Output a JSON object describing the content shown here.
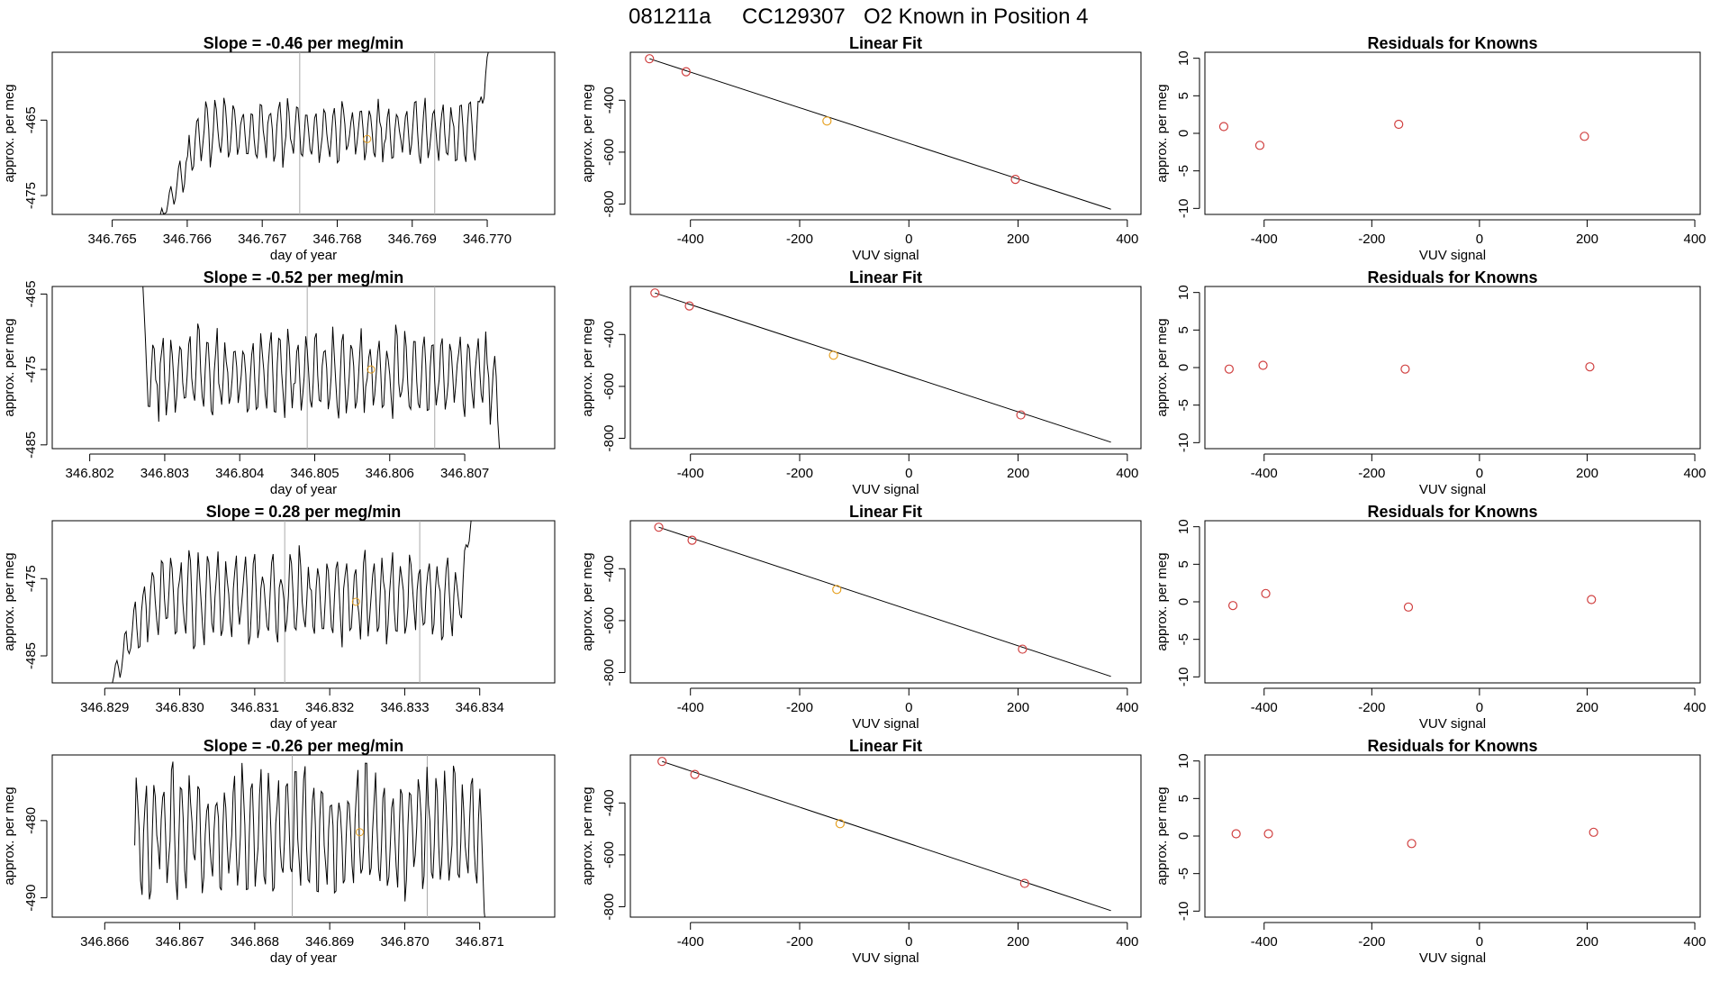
{
  "header": {
    "run_id": "081211a",
    "cylinder": "CC129307",
    "description": "O2 Known in Position  4"
  },
  "colors": {
    "line": "#000000",
    "residual_point": "#d04040",
    "highlight_point": "#e6a020",
    "vertical_marker": "#aaaaaa"
  },
  "chart_data": [
    {
      "type": "line",
      "row": 0,
      "panel": "time-series",
      "title": "Slope =  -0.46  per meg/min",
      "xlabel": "day of year",
      "ylabel": "approx. per meg",
      "xlim": [
        346.7642,
        346.7709
      ],
      "ylim": [
        -477.5,
        -456
      ],
      "xticks": [
        346.765,
        346.766,
        346.767,
        346.768,
        346.769,
        346.77
      ],
      "xtick_labels": [
        "346.765",
        "346.766",
        "346.767",
        "346.768",
        "346.769",
        "346.770"
      ],
      "yticks": [
        -465,
        -475
      ],
      "ytick_labels": [
        "-465",
        "-475"
      ],
      "series_start": 346.7655,
      "series_end": 346.7701,
      "baseline": -466.5,
      "amplitude": 4.0,
      "cycles": 38,
      "seed": 3,
      "ramp_end": 346.7662,
      "ramp_from": -481,
      "tail_start": 346.76985,
      "tail_to": -452,
      "markers": [
        346.7675,
        346.7693
      ],
      "highlight": {
        "x": 346.7684,
        "y": -467.5
      }
    },
    {
      "type": "scatter",
      "row": 0,
      "panel": "linear-fit",
      "title": "Linear Fit",
      "xlabel": "VUV signal",
      "ylabel": "approx. per meg",
      "xlim": [
        -510,
        425
      ],
      "ylim": [
        -840,
        -215
      ],
      "xticks": [
        -400,
        -200,
        0,
        200,
        400
      ],
      "xtick_labels": [
        "-400",
        "-200",
        "0",
        "200",
        "400"
      ],
      "yticks": [
        -400,
        -600,
        -800
      ],
      "ytick_labels": [
        "-400",
        "-600",
        "-800"
      ],
      "points": [
        {
          "x": -475,
          "y": -240,
          "highlight": false
        },
        {
          "x": -408,
          "y": -290,
          "highlight": false
        },
        {
          "x": -150,
          "y": -480,
          "highlight": true
        },
        {
          "x": 195,
          "y": -705,
          "highlight": false
        }
      ],
      "fit_line": {
        "x": [
          -475,
          370
        ],
        "y": [
          -240,
          -820
        ]
      }
    },
    {
      "type": "scatter",
      "row": 0,
      "panel": "residuals",
      "title": "Residuals for Knowns",
      "xlabel": "VUV signal",
      "ylabel": "approx. per meg",
      "xlim": [
        -510,
        410
      ],
      "ylim": [
        -10.8,
        10.8
      ],
      "xticks": [
        -400,
        -200,
        0,
        200,
        400
      ],
      "xtick_labels": [
        "-400",
        "-200",
        "0",
        "200",
        "400"
      ],
      "yticks": [
        10,
        5,
        0,
        -5,
        -10
      ],
      "ytick_labels": [
        "10",
        "5",
        "0",
        "-5",
        "-10"
      ],
      "points": [
        {
          "x": -475,
          "y": 0.9
        },
        {
          "x": -408,
          "y": -1.6
        },
        {
          "x": -150,
          "y": 1.2
        },
        {
          "x": 195,
          "y": -0.4
        }
      ]
    },
    {
      "type": "line",
      "row": 1,
      "panel": "time-series",
      "title": "Slope =  -0.52  per meg/min",
      "xlabel": "day of year",
      "ylabel": "approx. per meg",
      "xlim": [
        346.8015,
        346.8082
      ],
      "ylim": [
        -485.5,
        -464
      ],
      "xticks": [
        346.802,
        346.803,
        346.804,
        346.805,
        346.806,
        346.807
      ],
      "xtick_labels": [
        "346.802",
        "346.803",
        "346.804",
        "346.805",
        "346.806",
        "346.807"
      ],
      "yticks": [
        -465,
        -475,
        -485
      ],
      "ytick_labels": [
        "-465",
        "-475",
        "-485"
      ],
      "series_start": 346.8027,
      "series_end": 346.8075,
      "baseline": -475.5,
      "amplitude": 5.5,
      "cycles": 40,
      "seed": 7,
      "ramp_end": 346.80275,
      "ramp_from": -462,
      "tail_start": 346.8074,
      "tail_to": -489,
      "markers": [
        346.8049,
        346.8066
      ],
      "highlight": {
        "x": 346.80575,
        "y": -475
      }
    },
    {
      "type": "scatter",
      "row": 1,
      "panel": "linear-fit",
      "title": "Linear Fit",
      "xlabel": "VUV signal",
      "ylabel": "approx. per meg",
      "xlim": [
        -510,
        425
      ],
      "ylim": [
        -840,
        -215
      ],
      "xticks": [
        -400,
        -200,
        0,
        200,
        400
      ],
      "xtick_labels": [
        "-400",
        "-200",
        "0",
        "200",
        "400"
      ],
      "yticks": [
        -400,
        -600,
        -800
      ],
      "ytick_labels": [
        "-400",
        "-600",
        "-800"
      ],
      "points": [
        {
          "x": -465,
          "y": -240,
          "highlight": false
        },
        {
          "x": -402,
          "y": -290,
          "highlight": false
        },
        {
          "x": -138,
          "y": -480,
          "highlight": true
        },
        {
          "x": 205,
          "y": -710,
          "highlight": false
        }
      ],
      "fit_line": {
        "x": [
          -465,
          370
        ],
        "y": [
          -240,
          -815
        ]
      }
    },
    {
      "type": "scatter",
      "row": 1,
      "panel": "residuals",
      "title": "Residuals for Knowns",
      "xlabel": "VUV signal",
      "ylabel": "approx. per meg",
      "xlim": [
        -510,
        410
      ],
      "ylim": [
        -10.8,
        10.8
      ],
      "xticks": [
        -400,
        -200,
        0,
        200,
        400
      ],
      "xtick_labels": [
        "-400",
        "-200",
        "0",
        "200",
        "400"
      ],
      "yticks": [
        10,
        5,
        0,
        -5,
        -10
      ],
      "ytick_labels": [
        "10",
        "5",
        "0",
        "-5",
        "-10"
      ],
      "points": [
        {
          "x": -465,
          "y": -0.2
        },
        {
          "x": -402,
          "y": 0.3
        },
        {
          "x": -138,
          "y": -0.2
        },
        {
          "x": 205,
          "y": 0.1
        }
      ]
    },
    {
      "type": "line",
      "row": 2,
      "panel": "time-series",
      "title": "Slope =  0.28  per meg/min",
      "xlabel": "day of year",
      "ylabel": "approx. per meg",
      "xlim": [
        346.8283,
        346.835
      ],
      "ylim": [
        -488.5,
        -467.5
      ],
      "xticks": [
        346.829,
        346.83,
        346.831,
        346.832,
        346.833,
        346.834
      ],
      "xtick_labels": [
        "346.829",
        "346.830",
        "346.831",
        "346.832",
        "346.833",
        "346.834"
      ],
      "yticks": [
        -475,
        -485
      ],
      "ytick_labels": [
        "-475",
        "-485"
      ],
      "series_start": 346.829,
      "series_end": 346.8339,
      "baseline": -477.5,
      "amplitude": 5.5,
      "cycles": 40,
      "seed": 11,
      "ramp_end": 346.8296,
      "ramp_from": -490,
      "tail_start": 346.83375,
      "tail_to": -466,
      "markers": [
        346.8314,
        346.8332
      ],
      "highlight": {
        "x": 346.83235,
        "y": -478
      }
    },
    {
      "type": "scatter",
      "row": 2,
      "panel": "linear-fit",
      "title": "Linear Fit",
      "xlabel": "VUV signal",
      "ylabel": "approx. per meg",
      "xlim": [
        -510,
        425
      ],
      "ylim": [
        -840,
        -215
      ],
      "xticks": [
        -400,
        -200,
        0,
        200,
        400
      ],
      "xtick_labels": [
        "-400",
        "-200",
        "0",
        "200",
        "400"
      ],
      "yticks": [
        -400,
        -600,
        -800
      ],
      "ytick_labels": [
        "-400",
        "-600",
        "-800"
      ],
      "points": [
        {
          "x": -458,
          "y": -240,
          "highlight": false
        },
        {
          "x": -397,
          "y": -290,
          "highlight": false
        },
        {
          "x": -132,
          "y": -480,
          "highlight": true
        },
        {
          "x": 208,
          "y": -710,
          "highlight": false
        }
      ],
      "fit_line": {
        "x": [
          -458,
          370
        ],
        "y": [
          -240,
          -815
        ]
      }
    },
    {
      "type": "scatter",
      "row": 2,
      "panel": "residuals",
      "title": "Residuals for Knowns",
      "xlabel": "VUV signal",
      "ylabel": "approx. per meg",
      "xlim": [
        -510,
        410
      ],
      "ylim": [
        -10.8,
        10.8
      ],
      "xticks": [
        -400,
        -200,
        0,
        200,
        400
      ],
      "xtick_labels": [
        "-400",
        "-200",
        "0",
        "200",
        "400"
      ],
      "yticks": [
        10,
        5,
        0,
        -5,
        -10
      ],
      "ytick_labels": [
        "10",
        "5",
        "0",
        "-5",
        "-10"
      ],
      "points": [
        {
          "x": -458,
          "y": -0.5
        },
        {
          "x": -397,
          "y": 1.1
        },
        {
          "x": -132,
          "y": -0.7
        },
        {
          "x": 208,
          "y": 0.3
        }
      ]
    },
    {
      "type": "line",
      "row": 3,
      "panel": "time-series",
      "title": "Slope =  -0.26  per meg/min",
      "xlabel": "day of year",
      "ylabel": "approx. per meg",
      "xlim": [
        346.8653,
        346.872
      ],
      "ylim": [
        -492.5,
        -471.5
      ],
      "xticks": [
        346.866,
        346.867,
        346.868,
        346.869,
        346.87,
        346.871
      ],
      "xtick_labels": [
        "346.866",
        "346.867",
        "346.868",
        "346.869",
        "346.870",
        "346.871"
      ],
      "yticks": [
        -480,
        -490
      ],
      "ytick_labels": [
        "-480",
        "-490"
      ],
      "series_start": 346.8664,
      "series_end": 346.8711,
      "baseline": -481.5,
      "amplitude": 8.0,
      "cycles": 40,
      "seed": 17,
      "ramp_end": 346.8664,
      "ramp_from": -465,
      "tail_start": 346.871,
      "tail_to": -495,
      "markers": [
        346.8685,
        346.8703
      ],
      "highlight": {
        "x": 346.8694,
        "y": -481.5
      }
    },
    {
      "type": "scatter",
      "row": 3,
      "panel": "linear-fit",
      "title": "Linear Fit",
      "xlabel": "VUV signal",
      "ylabel": "approx. per meg",
      "xlim": [
        -510,
        425
      ],
      "ylim": [
        -840,
        -215
      ],
      "xticks": [
        -400,
        -200,
        0,
        200,
        400
      ],
      "xtick_labels": [
        "-400",
        "-200",
        "0",
        "200",
        "400"
      ],
      "yticks": [
        -400,
        -600,
        -800
      ],
      "ytick_labels": [
        "-400",
        "-600",
        "-800"
      ],
      "points": [
        {
          "x": -452,
          "y": -240,
          "highlight": false
        },
        {
          "x": -392,
          "y": -290,
          "highlight": false
        },
        {
          "x": -126,
          "y": -480,
          "highlight": true
        },
        {
          "x": 212,
          "y": -710,
          "highlight": false
        }
      ],
      "fit_line": {
        "x": [
          -452,
          370
        ],
        "y": [
          -240,
          -815
        ]
      }
    },
    {
      "type": "scatter",
      "row": 3,
      "panel": "residuals",
      "title": "Residuals for Knowns",
      "xlabel": "VUV signal",
      "ylabel": "approx. per meg",
      "xlim": [
        -510,
        410
      ],
      "ylim": [
        -10.8,
        10.8
      ],
      "xticks": [
        -400,
        -200,
        0,
        200,
        400
      ],
      "xtick_labels": [
        "-400",
        "-200",
        "0",
        "200",
        "400"
      ],
      "yticks": [
        10,
        5,
        0,
        -5,
        -10
      ],
      "ytick_labels": [
        "10",
        "5",
        "0",
        "-5",
        "-10"
      ],
      "points": [
        {
          "x": -452,
          "y": 0.3
        },
        {
          "x": -392,
          "y": 0.3
        },
        {
          "x": -126,
          "y": -1.0
        },
        {
          "x": 212,
          "y": 0.5
        }
      ]
    }
  ]
}
